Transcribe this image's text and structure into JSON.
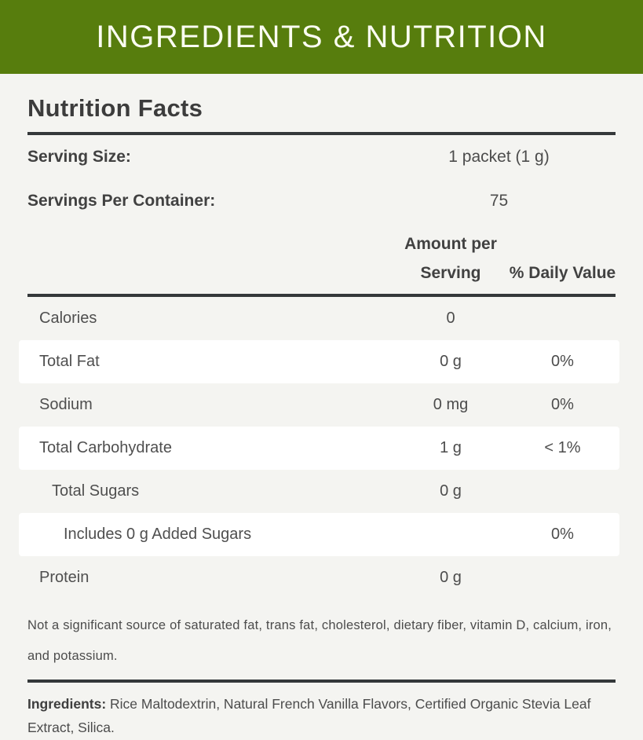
{
  "banner": {
    "title": "INGREDIENTS & NUTRITION"
  },
  "panel": {
    "title": "Nutrition Facts",
    "serving": [
      {
        "label": "Serving Size:",
        "value": "1 packet (1 g)"
      },
      {
        "label": "Servings Per Container:",
        "value": "75"
      }
    ],
    "columns": {
      "amount": "Amount per Serving",
      "daily": "% Daily Value"
    },
    "rows": [
      {
        "label": "Calories",
        "amount": "0",
        "daily": ""
      },
      {
        "label": "Total Fat",
        "amount": "0 g",
        "daily": "0%"
      },
      {
        "label": "Sodium",
        "amount": "0 mg",
        "daily": "0%"
      },
      {
        "label": "Total Carbohydrate",
        "amount": "1 g",
        "daily": "< 1%"
      },
      {
        "label": "Total Sugars",
        "amount": "0 g",
        "daily": ""
      },
      {
        "label": "Includes 0 g Added Sugars",
        "amount": "",
        "daily": "0%"
      },
      {
        "label": "Protein",
        "amount": "0 g",
        "daily": ""
      }
    ],
    "footnote": "Not a significant source of saturated fat, trans fat, cholesterol, dietary fiber, vitamin D, calcium, iron, and potassium.",
    "ingredients_label": "Ingredients:",
    "ingredients_text": " Rice Maltodextrin, Natural French Vanilla Flavors, Certified Organic Stevia Leaf Extract, Silica."
  },
  "colors": {
    "banner_green": "#577d0d",
    "banner_text": "#fbfdf1",
    "page_background": "#f4f4f1",
    "rule_dark": "#34383a",
    "row_white": "#ffffff",
    "text_dark": "#3c3c3c",
    "text_body": "#4c4c4c"
  }
}
